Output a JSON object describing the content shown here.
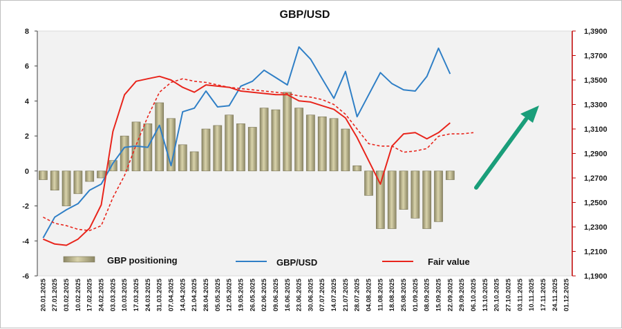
{
  "chart_data": {
    "type": "bar",
    "title": "GBP/USD",
    "xlabel": "",
    "ylabel": "",
    "ylim": [
      -6,
      8
    ],
    "y_ticks": [
      -6,
      -4,
      -2,
      0,
      2,
      4,
      6,
      8
    ],
    "y2lim": [
      1.19,
      1.39
    ],
    "y2_ticks": [
      "1,1900",
      "1,2100",
      "1,2300",
      "1,2500",
      "1,2700",
      "1,2900",
      "1,3100",
      "1,3300",
      "1,3500",
      "1,3700",
      "1,3900"
    ],
    "categories": [
      "20.01.2025",
      "27.01.2025",
      "03.02.2025",
      "10.02.2025",
      "17.02.2025",
      "24.02.2025",
      "03.03.2025",
      "10.03.2025",
      "17.03.2025",
      "24.03.2025",
      "31.03.2025",
      "07.04.2025",
      "14.04.2025",
      "21.04.2025",
      "28.04.2025",
      "05.05.2025",
      "12.05.2025",
      "19.05.2025",
      "26.05.2025",
      "02.06.2025",
      "09.06.2025",
      "16.06.2025",
      "23.06.2025",
      "30.06.2025",
      "07.07.2025",
      "14.07.2025",
      "21.07.2025",
      "28.07.2025",
      "04.08.2025",
      "11.08.2025",
      "18.08.2025",
      "25.08.2025",
      "01.09.2025",
      "08.09.2025",
      "15.09.2025",
      "22.09.2025",
      "29.09.2025",
      "06.10.2025",
      "13.10.2025",
      "20.10.2025",
      "27.10.2025",
      "03.11.2025",
      "10.11.2025",
      "17.11.2025",
      "24.11.2025",
      "01.12.2025"
    ],
    "series": [
      {
        "name": "GBP positioning",
        "type": "bar",
        "axis": "left",
        "color": "#b5af84",
        "values": [
          -0.5,
          -1.1,
          -2.0,
          -1.3,
          -0.6,
          -0.4,
          0.6,
          2.0,
          2.8,
          2.7,
          3.9,
          3.0,
          1.5,
          1.1,
          2.4,
          2.6,
          3.2,
          2.7,
          2.5,
          3.6,
          3.5,
          4.5,
          3.6,
          3.2,
          3.1,
          3.0,
          2.4,
          0.3,
          -1.4,
          -3.3,
          -3.3,
          -2.2,
          -2.7,
          -3.3,
          -2.9,
          -0.5,
          null,
          null,
          null,
          null,
          null,
          null,
          null,
          null,
          null,
          null
        ]
      },
      {
        "name": "GBP/USD",
        "type": "line",
        "axis": "right",
        "color": "#2f7fc6",
        "values": [
          1.221,
          1.238,
          1.244,
          1.249,
          1.26,
          1.265,
          1.282,
          1.295,
          1.296,
          1.295,
          1.313,
          1.28,
          1.324,
          1.327,
          1.341,
          1.328,
          1.329,
          1.345,
          1.349,
          1.358,
          1.352,
          1.346,
          1.377,
          1.367,
          1.351,
          1.335,
          1.357,
          1.32,
          1.338,
          1.356,
          1.347,
          1.342,
          1.341,
          1.353,
          1.376,
          1.355,
          null,
          null,
          null,
          null,
          null,
          null,
          null,
          null,
          null,
          null
        ]
      },
      {
        "name": "Fair value",
        "type": "line",
        "axis": "right",
        "color": "#e8241b",
        "values": [
          1.22,
          1.216,
          1.215,
          1.22,
          1.229,
          1.248,
          1.308,
          1.338,
          1.349,
          1.351,
          1.353,
          1.35,
          1.344,
          1.34,
          1.346,
          1.345,
          1.344,
          1.341,
          1.34,
          1.339,
          1.338,
          1.338,
          1.333,
          1.332,
          1.329,
          1.326,
          1.319,
          1.303,
          1.284,
          1.265,
          1.296,
          1.306,
          1.307,
          1.302,
          1.307,
          1.315,
          null,
          null,
          null,
          null,
          null,
          null,
          null,
          null,
          null,
          null
        ]
      },
      {
        "name": "",
        "type": "line",
        "axis": "right",
        "color": "#e8241b",
        "dashed": true,
        "values": [
          1.238,
          1.233,
          1.231,
          1.228,
          1.227,
          1.231,
          1.254,
          1.272,
          1.297,
          1.32,
          1.34,
          1.348,
          1.351,
          1.349,
          1.348,
          1.346,
          1.344,
          1.343,
          1.342,
          1.341,
          1.34,
          1.339,
          1.337,
          1.336,
          1.334,
          1.33,
          1.322,
          1.31,
          1.298,
          1.296,
          1.296,
          1.291,
          1.292,
          1.294,
          1.304,
          1.306,
          1.306,
          1.307,
          null,
          null,
          null,
          null,
          null,
          null,
          null,
          null
        ]
      }
    ],
    "legend": [
      {
        "label": "GBP positioning",
        "kind": "bar",
        "color": "#b5af84"
      },
      {
        "label": "GBP/USD",
        "kind": "line",
        "color": "#2f7fc6"
      },
      {
        "label": "Fair value",
        "kind": "line",
        "color": "#e8241b"
      }
    ],
    "legend_position": "bottom-inside",
    "annotation": {
      "kind": "up-arrow",
      "color": "#1a9e7a"
    },
    "grid": false,
    "plot_background": "#f2f2f2"
  }
}
